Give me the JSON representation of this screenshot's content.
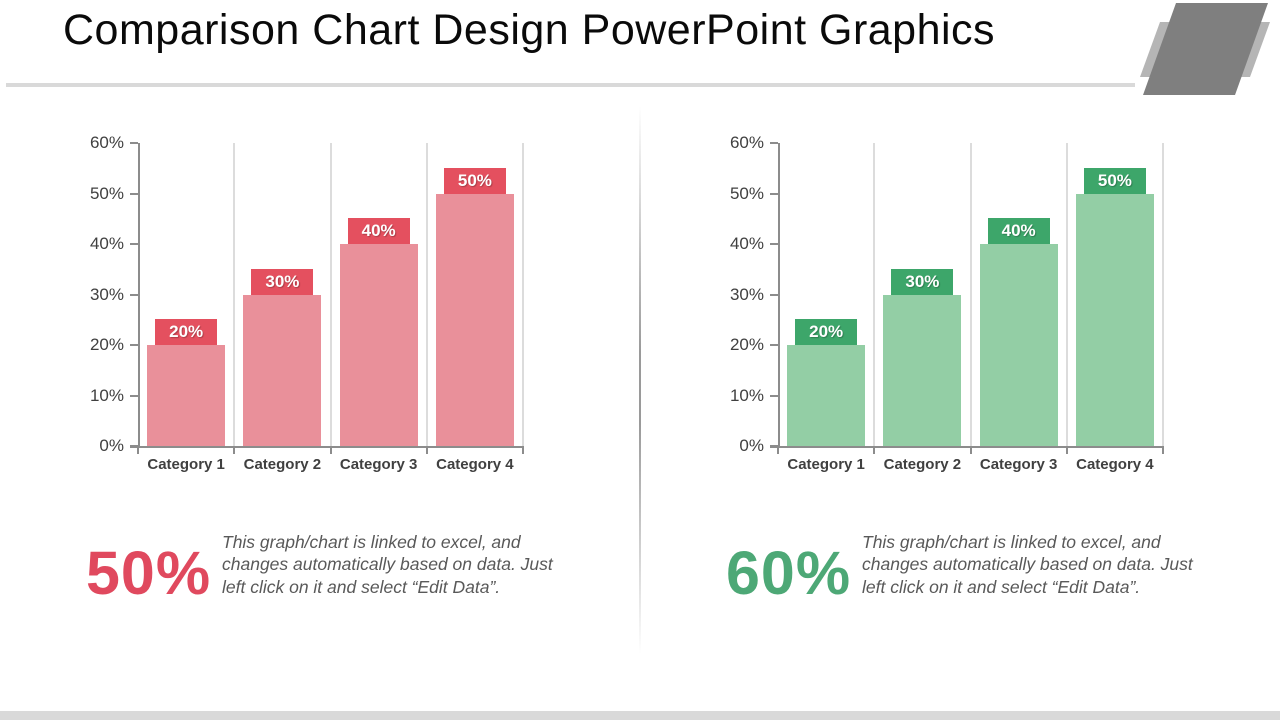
{
  "title": "Comparison Chart Design PowerPoint Graphics",
  "chart_data": [
    {
      "type": "bar",
      "title": "",
      "xlabel": "",
      "ylabel": "",
      "categories": [
        "Category 1",
        "Category 2",
        "Category 3",
        "Category 4"
      ],
      "values": [
        20,
        30,
        40,
        50
      ],
      "bar_labels": [
        "20%",
        "30%",
        "40%",
        "50%"
      ],
      "ylim": [
        0,
        60
      ],
      "y_tick_step": 10,
      "y_tick_labels": [
        "0%",
        "10%",
        "20%",
        "30%",
        "40%",
        "50%",
        "60%"
      ],
      "grid": "vertical-category-separators-only",
      "legend": "none",
      "bar_color": "#E9909A",
      "bar_label_bg": "#E4505F"
    },
    {
      "type": "bar",
      "title": "",
      "xlabel": "",
      "ylabel": "",
      "categories": [
        "Category 1",
        "Category 2",
        "Category 3",
        "Category 4"
      ],
      "values": [
        20,
        30,
        40,
        50
      ],
      "bar_labels": [
        "20%",
        "30%",
        "40%",
        "50%"
      ],
      "ylim": [
        0,
        60
      ],
      "y_tick_step": 10,
      "y_tick_labels": [
        "0%",
        "10%",
        "20%",
        "30%",
        "40%",
        "50%",
        "60%"
      ],
      "grid": "vertical-category-separators-only",
      "legend": "none",
      "bar_color": "#93CEA5",
      "bar_label_bg": "#3DA66A"
    }
  ],
  "stats": [
    {
      "value": "50%",
      "color": "#E0495E",
      "description": "This graph/chart is linked to excel, and changes automatically based on data. Just left click on it and select “Edit Data”."
    },
    {
      "value": "60%",
      "color": "#4DA876",
      "description": "This graph/chart is linked to excel, and changes automatically based on data. Just left click on it and select “Edit Data”."
    }
  ]
}
